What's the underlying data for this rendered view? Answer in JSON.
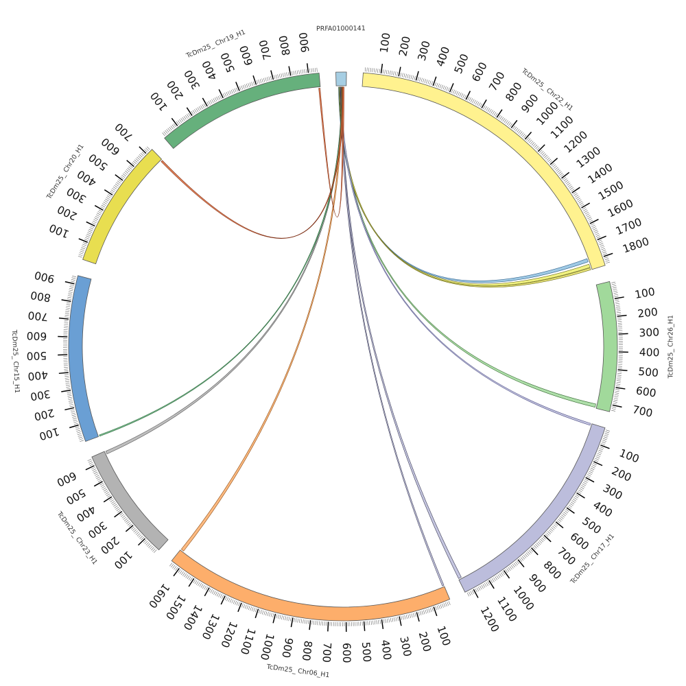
{
  "chart_data": {
    "type": "chord",
    "segments": [
      {
        "id": "prfa",
        "label": "PRFA01000141",
        "length": 60,
        "color": "#a6cee3",
        "major_step": null
      },
      {
        "id": "chr22",
        "label": "TcDm25_ Chr22_H1",
        "length": 1850,
        "color": "#fff28f",
        "major_step": 100
      },
      {
        "id": "chr26",
        "label": "TcDm25_ Chr26_H1",
        "length": 740,
        "color": "#a1d99b",
        "major_step": 100
      },
      {
        "id": "chr17",
        "label": "TcDm25_ Chr17_H1",
        "length": 1250,
        "color": "#bcbddc",
        "major_step": 100
      },
      {
        "id": "chr06",
        "label": "TcDm25_ Chr06_H1",
        "length": 1660,
        "color": "#fdae6b",
        "major_step": 100
      },
      {
        "id": "chr23",
        "label": "TcDm25_ Chr23_H1",
        "length": 650,
        "color": "#b3b3b3",
        "major_step": 100
      },
      {
        "id": "chr15",
        "label": "TcDm25_ Chr15_H1",
        "length": 950,
        "color": "#6a9fd4",
        "major_step": 100
      },
      {
        "id": "chr20",
        "label": "TcDm25_ Chr20_H1",
        "length": 740,
        "color": "#e8de50",
        "major_step": 100
      },
      {
        "id": "chr19",
        "label": "TcDm25_ Chr19_H1",
        "length": 960,
        "color": "#66b07c",
        "major_step": 100
      }
    ],
    "links": [
      {
        "to": "chr22",
        "to_range": [
          1780,
          1800
        ],
        "color": "#8fc1e0",
        "stroke": "#2c5f8a"
      },
      {
        "to": "chr22",
        "to_range": [
          1815,
          1835
        ],
        "color": "#eef06a",
        "stroke": "#6f6f20"
      },
      {
        "to": "chr22",
        "to_range": [
          1838,
          1850
        ],
        "color": "#e6e060",
        "stroke": "#6f6f20"
      },
      {
        "to": "chr26",
        "to_range": [
          715,
          735
        ],
        "color": "#a1d99b",
        "stroke": "#3a6e36"
      },
      {
        "to": "chr17",
        "to_range": [
          0,
          12
        ],
        "color": "#bcbddc",
        "stroke": "#55558a"
      },
      {
        "to": "chr17",
        "to_range": [
          1230,
          1248
        ],
        "color": "#bcbddc",
        "stroke": "#3c3c55"
      },
      {
        "to": "chr06",
        "to_range": [
          0,
          10
        ],
        "color": "#bcbddc",
        "stroke": "#3c3c55"
      },
      {
        "to": "chr06",
        "to_range": [
          1640,
          1658
        ],
        "color": "#fdae6b",
        "stroke": "#8a4a10"
      },
      {
        "to": "chr23",
        "to_range": [
          630,
          648
        ],
        "color": "#b3b3b3",
        "stroke": "#555555"
      },
      {
        "to": "chr15",
        "to_range": [
          0,
          8
        ],
        "color": "#66b07c",
        "stroke": "#2d6b3e"
      },
      {
        "to": "chr20",
        "to_range": [
          728,
          738
        ],
        "color": "#e07040",
        "stroke": "#7a2a10"
      },
      {
        "to": "chr19",
        "to_range": [
          950,
          958
        ],
        "color": "#e07040",
        "stroke": "#7a2a10"
      }
    ]
  }
}
